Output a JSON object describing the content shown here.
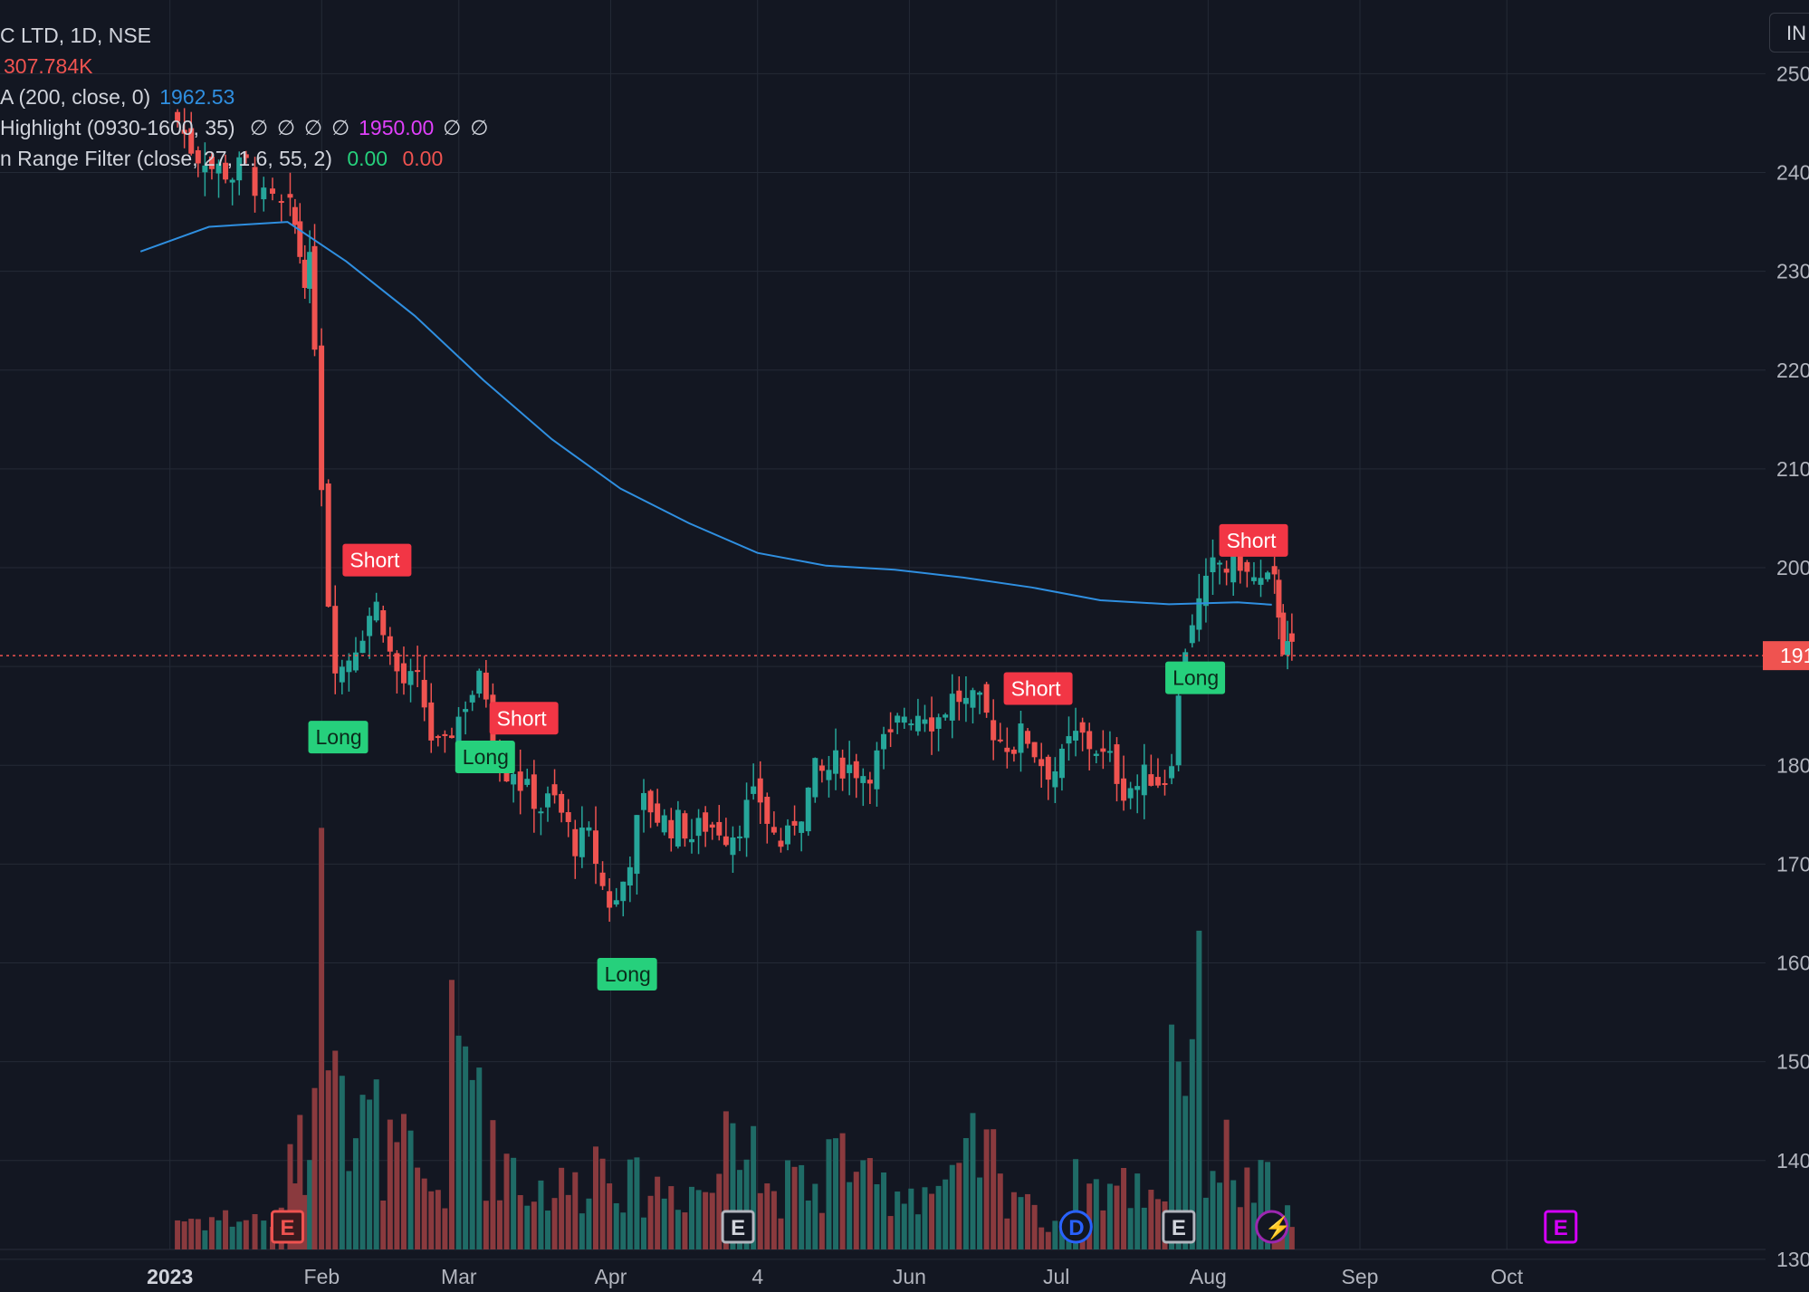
{
  "legend": {
    "symbol_line": "C LTD, 1D, NSE",
    "volume": "307.784K",
    "ma_label": "A (200, close, 0)",
    "ma_value": "1962.53",
    "highlight_label": "Highlight (0930-1600, 35)",
    "highlight_values": [
      "∅",
      "∅",
      "∅",
      "∅",
      "1950.00",
      "∅",
      "∅"
    ],
    "range_filter_label": "n Range Filter (close, 27, 1.6, 55, 2)",
    "range_filter_values": [
      "0.00",
      "0.00"
    ]
  },
  "top_button": "IN",
  "price_tag": "191",
  "colors": {
    "background": "#131722",
    "grid": "#242a36",
    "up": "#26a69a",
    "down": "#ef5350",
    "up_volume": "#1f6b66",
    "down_volume": "#8a3a3e",
    "ma": "#2f8fe0",
    "long_label": "#26d07c",
    "short_label": "#f23645",
    "highlight": "#e040fb",
    "legend_text": "#d1d4dc"
  },
  "chart_data": {
    "type": "candlestick",
    "y_axis_ticks": [
      "250",
      "240",
      "230",
      "220",
      "210",
      "200",
      "180",
      "170",
      "160",
      "150",
      "140",
      "130"
    ],
    "ylim": [
      1310,
      2570
    ],
    "x_axis_ticks": [
      "2023",
      "Feb",
      "Mar",
      "Apr",
      "4",
      "Jun",
      "Jul",
      "Aug",
      "Sep",
      "Oct"
    ],
    "current_price": 1911,
    "series": [
      {
        "name": "Price",
        "kind": "candles",
        "x": [
          "2023-01-02",
          "2023-01-09",
          "2023-01-16",
          "2023-01-25",
          "2023-01-30",
          "2023-02-06",
          "2023-02-13",
          "2023-02-20",
          "2023-02-27",
          "2023-03-06",
          "2023-03-13",
          "2023-03-20",
          "2023-03-27",
          "2023-04-03",
          "2023-04-10",
          "2023-04-17",
          "2023-04-24",
          "2023-05-01",
          "2023-05-08",
          "2023-05-15",
          "2023-05-22",
          "2023-05-29",
          "2023-06-05",
          "2023-06-12",
          "2023-06-19",
          "2023-06-26",
          "2023-07-03",
          "2023-07-10",
          "2023-07-17",
          "2023-07-24",
          "2023-07-31",
          "2023-08-07",
          "2023-08-14"
        ],
        "close": [
          2420,
          2400,
          2360,
          2300,
          1900,
          1960,
          1880,
          1810,
          1880,
          1800,
          1760,
          1720,
          1660,
          1760,
          1740,
          1740,
          1760,
          1720,
          1790,
          1800,
          1820,
          1860,
          1870,
          1840,
          1830,
          1800,
          1820,
          1780,
          1790,
          1960,
          2000,
          1980,
          1911
        ]
      },
      {
        "name": "A (200, close, 0)",
        "kind": "line",
        "x": [
          "2022-12-26",
          "2023-01-09",
          "2023-01-25",
          "2023-02-06",
          "2023-02-20",
          "2023-03-06",
          "2023-03-20",
          "2023-04-03",
          "2023-04-17",
          "2023-05-01",
          "2023-05-15",
          "2023-05-29",
          "2023-06-12",
          "2023-06-26",
          "2023-07-10",
          "2023-07-24",
          "2023-08-07",
          "2023-08-14"
        ],
        "values": [
          2320,
          2345,
          2350,
          2310,
          2255,
          2190,
          2130,
          2080,
          2045,
          2015,
          2002,
          1998,
          1990,
          1980,
          1967,
          1963,
          1965,
          1962.53
        ]
      },
      {
        "name": "Volume",
        "kind": "bars",
        "x": [
          "2023-01-02",
          "2023-01-09",
          "2023-01-16",
          "2023-01-25",
          "2023-01-30",
          "2023-02-06",
          "2023-02-13",
          "2023-02-20",
          "2023-02-27",
          "2023-03-06",
          "2023-03-13",
          "2023-03-20",
          "2023-03-27",
          "2023-04-03",
          "2023-04-10",
          "2023-04-17",
          "2023-04-24",
          "2023-05-01",
          "2023-05-08",
          "2023-05-15",
          "2023-05-22",
          "2023-05-29",
          "2023-06-05",
          "2023-06-12",
          "2023-06-19",
          "2023-06-26",
          "2023-07-03",
          "2023-07-10",
          "2023-07-17",
          "2023-07-24",
          "2023-07-31",
          "2023-08-07",
          "2023-08-14"
        ],
        "values": [
          0.1,
          0.1,
          0.1,
          0.3,
          1.0,
          0.4,
          0.3,
          0.2,
          0.6,
          0.3,
          0.2,
          0.2,
          0.3,
          0.2,
          0.2,
          0.2,
          0.5,
          0.2,
          0.2,
          0.3,
          0.2,
          0.2,
          0.2,
          0.3,
          0.2,
          0.1,
          0.2,
          0.2,
          0.2,
          0.7,
          0.3,
          0.2,
          0.1
        ]
      }
    ],
    "signals": [
      {
        "label": "Long",
        "x": "2023-01-30"
      },
      {
        "label": "Short",
        "x": "2023-02-06"
      },
      {
        "label": "Long",
        "x": "2023-03-01"
      },
      {
        "label": "Short",
        "x": "2023-03-08"
      },
      {
        "label": "Long",
        "x": "2023-03-30"
      },
      {
        "label": "Short",
        "x": "2023-06-21"
      },
      {
        "label": "Long",
        "x": "2023-07-24"
      },
      {
        "label": "Short",
        "x": "2023-08-04"
      }
    ],
    "events": [
      {
        "symbol": "E",
        "x": "2023-01-25"
      },
      {
        "symbol": "E",
        "x": "2023-04-27"
      },
      {
        "symbol": "D",
        "x": "2023-07-05"
      },
      {
        "symbol": "E",
        "x": "2023-07-26"
      },
      {
        "symbol": "⚡",
        "x": "2023-08-14"
      },
      {
        "symbol": "E",
        "x": "2023-10-12"
      }
    ],
    "grid": true,
    "legend_position": "top-left"
  }
}
